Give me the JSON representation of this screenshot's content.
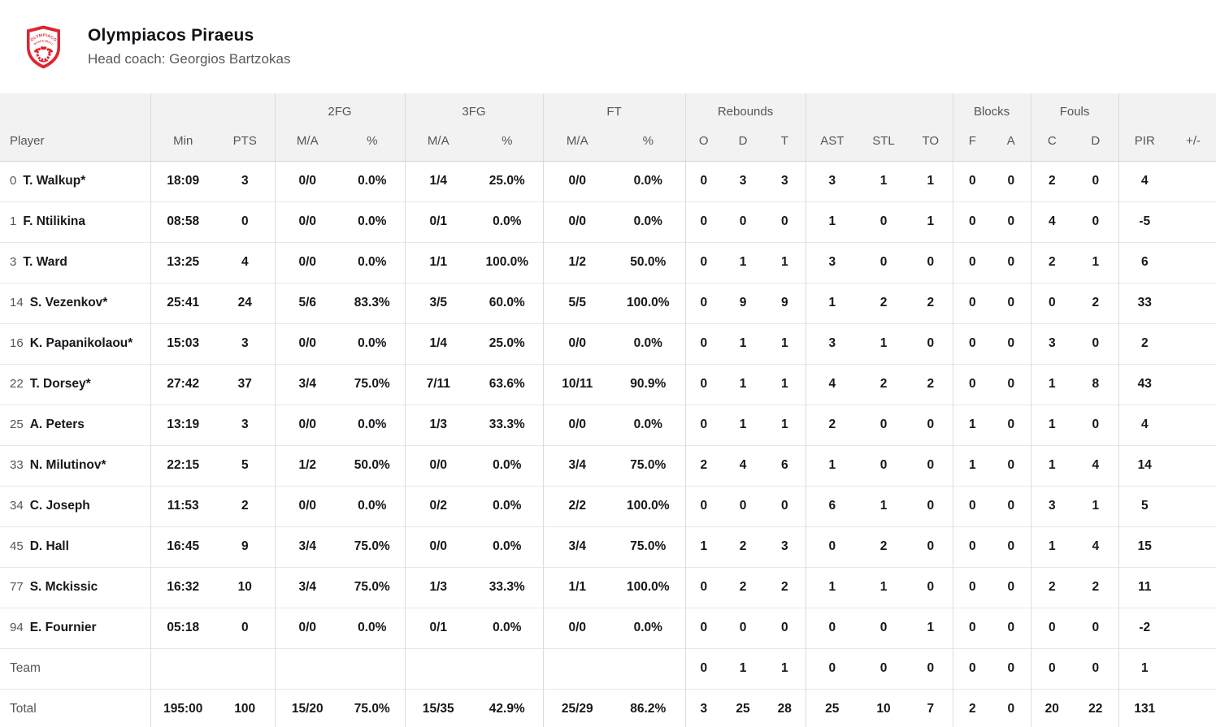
{
  "team": {
    "name": "Olympiacos Piraeus",
    "coach": "Head coach: Georgios Bartzokas",
    "brand_color": "#e02430",
    "logo_line1": "OLYMPIACOS",
    "logo_line2": "BASKETBALL"
  },
  "table": {
    "groups": {
      "fg2": "2FG",
      "fg3": "3FG",
      "ft": "FT",
      "rebounds": "Rebounds",
      "blocks": "Blocks",
      "fouls": "Fouls"
    },
    "columns": {
      "player": "Player",
      "min": "Min",
      "pts": "PTS",
      "ma": "M/A",
      "pct": "%",
      "o": "O",
      "d": "D",
      "t": "T",
      "ast": "AST",
      "stl": "STL",
      "to": "TO",
      "f": "F",
      "a": "A",
      "c": "C",
      "pir": "PIR",
      "plus_minus": "+/-"
    },
    "stat_keys": [
      "min",
      "pts",
      "fg2_ma",
      "fg2_pct",
      "fg3_ma",
      "fg3_pct",
      "ft_ma",
      "ft_pct",
      "reb_o",
      "reb_d",
      "reb_t",
      "ast",
      "stl",
      "to",
      "blk_f",
      "blk_a",
      "foul_c",
      "foul_d",
      "pir",
      "plus_minus"
    ],
    "rows": [
      {
        "num": "0",
        "name": "T. Walkup*",
        "stats": [
          "18:09",
          "3",
          "0/0",
          "0.0%",
          "1/4",
          "25.0%",
          "0/0",
          "0.0%",
          "0",
          "3",
          "3",
          "3",
          "1",
          "1",
          "0",
          "0",
          "2",
          "0",
          "4",
          ""
        ]
      },
      {
        "num": "1",
        "name": "F. Ntilikina",
        "stats": [
          "08:58",
          "0",
          "0/0",
          "0.0%",
          "0/1",
          "0.0%",
          "0/0",
          "0.0%",
          "0",
          "0",
          "0",
          "1",
          "0",
          "1",
          "0",
          "0",
          "4",
          "0",
          "-5",
          ""
        ]
      },
      {
        "num": "3",
        "name": "T. Ward",
        "stats": [
          "13:25",
          "4",
          "0/0",
          "0.0%",
          "1/1",
          "100.0%",
          "1/2",
          "50.0%",
          "0",
          "1",
          "1",
          "3",
          "0",
          "0",
          "0",
          "0",
          "2",
          "1",
          "6",
          ""
        ]
      },
      {
        "num": "14",
        "name": "S. Vezenkov*",
        "stats": [
          "25:41",
          "24",
          "5/6",
          "83.3%",
          "3/5",
          "60.0%",
          "5/5",
          "100.0%",
          "0",
          "9",
          "9",
          "1",
          "2",
          "2",
          "0",
          "0",
          "0",
          "2",
          "33",
          ""
        ]
      },
      {
        "num": "16",
        "name": "K. Papanikolaou*",
        "stats": [
          "15:03",
          "3",
          "0/0",
          "0.0%",
          "1/4",
          "25.0%",
          "0/0",
          "0.0%",
          "0",
          "1",
          "1",
          "3",
          "1",
          "0",
          "0",
          "0",
          "3",
          "0",
          "2",
          ""
        ]
      },
      {
        "num": "22",
        "name": "T. Dorsey*",
        "stats": [
          "27:42",
          "37",
          "3/4",
          "75.0%",
          "7/11",
          "63.6%",
          "10/11",
          "90.9%",
          "0",
          "1",
          "1",
          "4",
          "2",
          "2",
          "0",
          "0",
          "1",
          "8",
          "43",
          ""
        ]
      },
      {
        "num": "25",
        "name": "A. Peters",
        "stats": [
          "13:19",
          "3",
          "0/0",
          "0.0%",
          "1/3",
          "33.3%",
          "0/0",
          "0.0%",
          "0",
          "1",
          "1",
          "2",
          "0",
          "0",
          "1",
          "0",
          "1",
          "0",
          "4",
          ""
        ]
      },
      {
        "num": "33",
        "name": "N. Milutinov*",
        "stats": [
          "22:15",
          "5",
          "1/2",
          "50.0%",
          "0/0",
          "0.0%",
          "3/4",
          "75.0%",
          "2",
          "4",
          "6",
          "1",
          "0",
          "0",
          "1",
          "0",
          "1",
          "4",
          "14",
          ""
        ]
      },
      {
        "num": "34",
        "name": "C. Joseph",
        "stats": [
          "11:53",
          "2",
          "0/0",
          "0.0%",
          "0/2",
          "0.0%",
          "2/2",
          "100.0%",
          "0",
          "0",
          "0",
          "6",
          "1",
          "0",
          "0",
          "0",
          "3",
          "1",
          "5",
          ""
        ]
      },
      {
        "num": "45",
        "name": "D. Hall",
        "stats": [
          "16:45",
          "9",
          "3/4",
          "75.0%",
          "0/0",
          "0.0%",
          "3/4",
          "75.0%",
          "1",
          "2",
          "3",
          "0",
          "2",
          "0",
          "0",
          "0",
          "1",
          "4",
          "15",
          ""
        ]
      },
      {
        "num": "77",
        "name": "S. Mckissic",
        "stats": [
          "16:32",
          "10",
          "3/4",
          "75.0%",
          "1/3",
          "33.3%",
          "1/1",
          "100.0%",
          "0",
          "2",
          "2",
          "1",
          "1",
          "0",
          "0",
          "0",
          "2",
          "2",
          "11",
          ""
        ]
      },
      {
        "num": "94",
        "name": "E. Fournier",
        "stats": [
          "05:18",
          "0",
          "0/0",
          "0.0%",
          "0/1",
          "0.0%",
          "0/0",
          "0.0%",
          "0",
          "0",
          "0",
          "0",
          "0",
          "1",
          "0",
          "0",
          "0",
          "0",
          "-2",
          ""
        ]
      }
    ],
    "summary_rows": [
      {
        "label": "Team",
        "stats": [
          "",
          "",
          "",
          "",
          "",
          "",
          "",
          "",
          "0",
          "1",
          "1",
          "0",
          "0",
          "0",
          "0",
          "0",
          "0",
          "0",
          "1",
          ""
        ]
      },
      {
        "label": "Total",
        "stats": [
          "195:00",
          "100",
          "15/20",
          "75.0%",
          "15/35",
          "42.9%",
          "25/29",
          "86.2%",
          "3",
          "25",
          "28",
          "25",
          "10",
          "7",
          "2",
          "0",
          "20",
          "22",
          "131",
          ""
        ]
      }
    ]
  }
}
